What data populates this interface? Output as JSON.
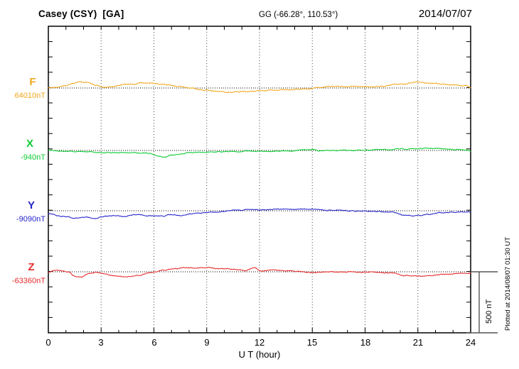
{
  "header": {
    "station": "Casey (CSY)  [GA]",
    "coords": "GG (-66.28°, 110.53°)",
    "date": "2014/07/07"
  },
  "side": {
    "scale_label": "500 nT",
    "plotted_at": "Plotted at 2014/08/07 01:30 UT"
  },
  "chart_data": {
    "type": "line",
    "title": "Casey (CSY) [GA] magnetogram for 2014/07/07",
    "xlabel": "U T (hour)",
    "x_range_hours": [
      0,
      24
    ],
    "x_ticks": [
      0,
      3,
      6,
      9,
      12,
      15,
      18,
      21,
      24
    ],
    "x_grid_hours": [
      3,
      6,
      9,
      12,
      15,
      18,
      21
    ],
    "grid": "dotted-vertical-3h",
    "scale_bar_nT": 500,
    "legend_position": "left-of-axis",
    "series": [
      {
        "name": "F",
        "baseline_label": "64010nT",
        "baseline_nT": 64010,
        "color": "#F2A71B",
        "points_hour_deltaNT": [
          [
            0,
            0
          ],
          [
            0.5,
            8
          ],
          [
            1,
            20
          ],
          [
            1.4,
            40
          ],
          [
            1.8,
            50
          ],
          [
            2.2,
            46
          ],
          [
            2.7,
            23
          ],
          [
            3.1,
            6
          ],
          [
            3.6,
            12
          ],
          [
            4.4,
            29
          ],
          [
            5.4,
            40
          ],
          [
            5.9,
            40
          ],
          [
            6.5,
            29
          ],
          [
            7.3,
            17
          ],
          [
            8.1,
            0
          ],
          [
            8.9,
            -17
          ],
          [
            9.7,
            -29
          ],
          [
            10.5,
            -35
          ],
          [
            11.3,
            -29
          ],
          [
            12.1,
            -23
          ],
          [
            13.5,
            -12
          ],
          [
            14.8,
            -6
          ],
          [
            15.2,
            3
          ],
          [
            16.2,
            12
          ],
          [
            17.5,
            12
          ],
          [
            18.8,
            12
          ],
          [
            20.2,
            35
          ],
          [
            20.9,
            46
          ],
          [
            21.5,
            40
          ],
          [
            22.9,
            29
          ],
          [
            23.8,
            17
          ],
          [
            24,
            6
          ]
        ]
      },
      {
        "name": "X",
        "baseline_label": "-940nT",
        "baseline_nT": -940,
        "color": "#0ACC33",
        "points_hour_deltaNT": [
          [
            0,
            3
          ],
          [
            0.7,
            -6
          ],
          [
            2,
            -12
          ],
          [
            3.4,
            -17
          ],
          [
            4.7,
            -17
          ],
          [
            5.7,
            -23
          ],
          [
            6.2,
            -46
          ],
          [
            6.6,
            -52
          ],
          [
            7,
            -40
          ],
          [
            8.1,
            -17
          ],
          [
            9.4,
            -12
          ],
          [
            10.8,
            -9
          ],
          [
            12.1,
            -6
          ],
          [
            13.5,
            -4
          ],
          [
            15,
            6
          ],
          [
            15.4,
            -3
          ],
          [
            17,
            0
          ],
          [
            18.8,
            6
          ],
          [
            20.9,
            14
          ],
          [
            21.8,
            17
          ],
          [
            23.1,
            9
          ],
          [
            23.7,
            3
          ],
          [
            24,
            -6
          ]
        ]
      },
      {
        "name": "Y",
        "baseline_label": "-9090nT",
        "baseline_nT": -9090,
        "color": "#2626CC",
        "points_hour_deltaNT": [
          [
            0,
            -23
          ],
          [
            0.8,
            -46
          ],
          [
            1.5,
            -58
          ],
          [
            2.1,
            -52
          ],
          [
            2.7,
            -64
          ],
          [
            3.2,
            -46
          ],
          [
            3.8,
            -40
          ],
          [
            4.3,
            -46
          ],
          [
            5.1,
            -29
          ],
          [
            5.7,
            -40
          ],
          [
            6.5,
            -46
          ],
          [
            7,
            -29
          ],
          [
            7.6,
            -40
          ],
          [
            8.1,
            -23
          ],
          [
            9.4,
            -12
          ],
          [
            10.8,
            6
          ],
          [
            11.5,
            12
          ],
          [
            12.1,
            9
          ],
          [
            13,
            12
          ],
          [
            14.9,
            14
          ],
          [
            16.2,
            3
          ],
          [
            18,
            -3
          ],
          [
            19.6,
            -12
          ],
          [
            20.2,
            -35
          ],
          [
            21,
            -40
          ],
          [
            21.5,
            -29
          ],
          [
            22.3,
            -17
          ],
          [
            23.5,
            -12
          ],
          [
            24,
            -12
          ]
        ]
      },
      {
        "name": "Z",
        "baseline_label": "-63360nT",
        "baseline_nT": -63360,
        "color": "#E62B2B",
        "points_hour_deltaNT": [
          [
            0,
            0
          ],
          [
            0.5,
            12
          ],
          [
            1.1,
            0
          ],
          [
            1.5,
            -35
          ],
          [
            1.9,
            -40
          ],
          [
            2.3,
            -17
          ],
          [
            2.8,
            -3
          ],
          [
            3.1,
            -17
          ],
          [
            3.8,
            -35
          ],
          [
            4.4,
            -40
          ],
          [
            5.1,
            -29
          ],
          [
            5.8,
            -9
          ],
          [
            6.5,
            12
          ],
          [
            7.2,
            26
          ],
          [
            7.7,
            35
          ],
          [
            8.4,
            32
          ],
          [
            9.2,
            35
          ],
          [
            9.7,
            26
          ],
          [
            10.5,
            23
          ],
          [
            11.2,
            12
          ],
          [
            11.7,
            35
          ],
          [
            12.1,
            6
          ],
          [
            12.8,
            14
          ],
          [
            14.1,
            6
          ],
          [
            15,
            -6
          ],
          [
            16.2,
            0
          ],
          [
            18,
            -3
          ],
          [
            19.6,
            -9
          ],
          [
            20.2,
            -29
          ],
          [
            21,
            -35
          ],
          [
            21.8,
            -29
          ],
          [
            22.6,
            -20
          ],
          [
            23.5,
            -14
          ],
          [
            24,
            -9
          ]
        ]
      }
    ]
  }
}
